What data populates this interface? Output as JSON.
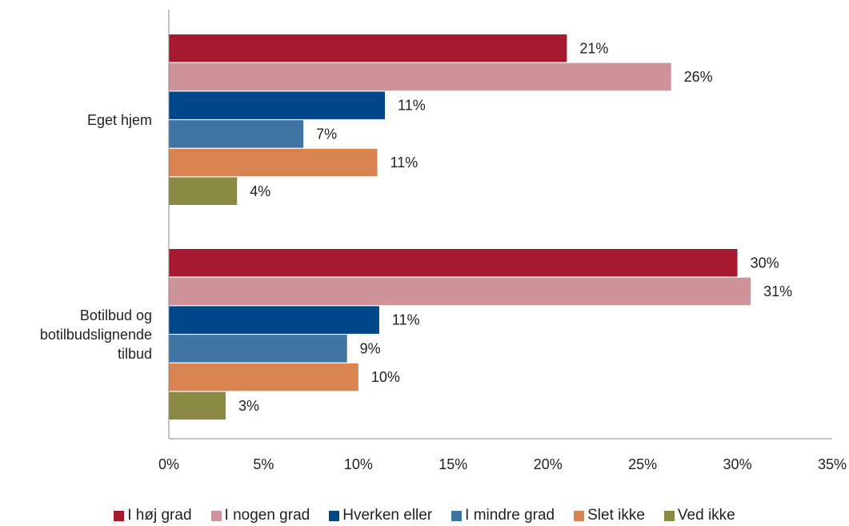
{
  "chart_data": {
    "type": "bar",
    "orientation": "horizontal",
    "categories": [
      "Eget hjem",
      "Botilbud og\nbotilbudslignende\ntilbud"
    ],
    "series": [
      {
        "name": "I høj grad",
        "color": "#A6192E",
        "values": [
          21,
          30
        ],
        "labels": [
          "21%",
          "30%"
        ]
      },
      {
        "name": "I nogen grad",
        "color": "#CF9499",
        "values": [
          26.5,
          30.7
        ],
        "labels": [
          "26%",
          "31%"
        ]
      },
      {
        "name": "Hverken eller",
        "color": "#00468B",
        "values": [
          11.4,
          11.1
        ],
        "labels": [
          "11%",
          "11%"
        ]
      },
      {
        "name": "I mindre grad",
        "color": "#3F74A3",
        "values": [
          7.1,
          9.4
        ],
        "labels": [
          "7%",
          "9%"
        ]
      },
      {
        "name": "Slet ikke",
        "color": "#DA8452",
        "values": [
          11.0,
          10.0
        ],
        "labels": [
          "11%",
          "10%"
        ]
      },
      {
        "name": "Ved ikke",
        "color": "#8A8A45",
        "values": [
          3.6,
          3.0
        ],
        "labels": [
          "4%",
          "3%"
        ]
      }
    ],
    "xlim": [
      0,
      35
    ],
    "xticks": [
      0,
      5,
      10,
      15,
      20,
      25,
      30,
      35
    ],
    "xtick_labels": [
      "0%",
      "5%",
      "10%",
      "15%",
      "20%",
      "25%",
      "30%",
      "35%"
    ],
    "xlabel": "",
    "ylabel": "",
    "grid": false,
    "legend_position": "bottom"
  }
}
